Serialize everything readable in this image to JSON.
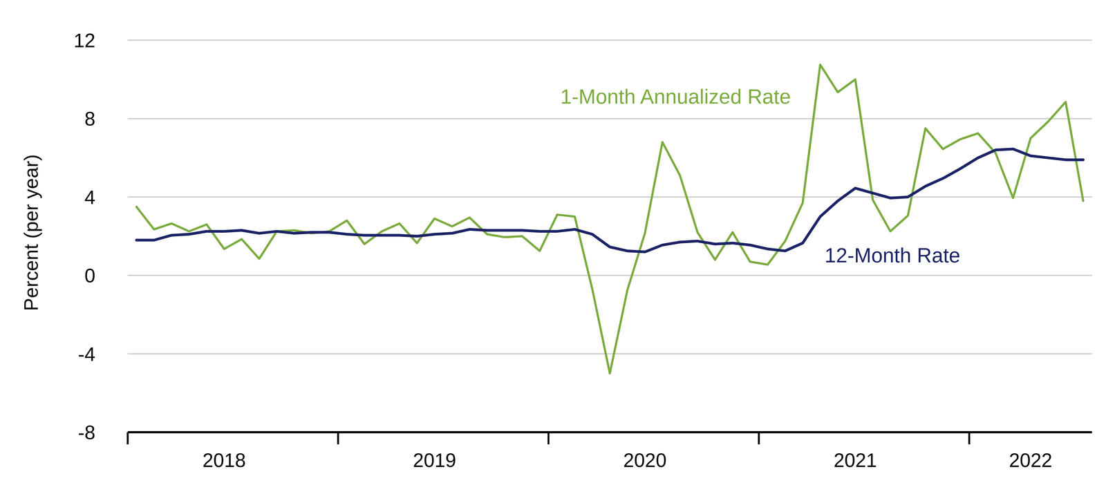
{
  "chart_data": {
    "type": "line",
    "y_label": "Percent (per year)",
    "annotations": [
      "1-Month Annualized Rate",
      "12-Month Rate"
    ],
    "categories": [
      null,
      null,
      null,
      null,
      null,
      "2018",
      null,
      null,
      null,
      null,
      null,
      null,
      null,
      null,
      null,
      null,
      null,
      "2019",
      null,
      null,
      null,
      null,
      null,
      null,
      null,
      null,
      null,
      null,
      null,
      "2020",
      null,
      null,
      null,
      null,
      null,
      null,
      null,
      null,
      null,
      null,
      null,
      "2021",
      null,
      null,
      null,
      null,
      null,
      null,
      null,
      null,
      null,
      "2022",
      null,
      null,
      null
    ],
    "series": [
      {
        "name": "1-Month Annualized Rate",
        "color": "#7aab3e",
        "values": [
          3.5,
          2.35,
          2.65,
          2.25,
          2.6,
          1.35,
          1.85,
          0.85,
          2.25,
          2.3,
          2.15,
          2.25,
          2.8,
          1.6,
          2.25,
          2.65,
          1.65,
          2.9,
          2.5,
          2.95,
          2.1,
          1.95,
          2.0,
          1.25,
          3.1,
          3.0,
          -0.7,
          -5.0,
          -0.75,
          2.15,
          6.8,
          5.1,
          2.2,
          0.8,
          2.2,
          0.7,
          0.55,
          1.75,
          3.7,
          10.75,
          9.35,
          10.0,
          3.85,
          2.25,
          3.05,
          7.5,
          6.45,
          6.95,
          7.25,
          6.25,
          3.95,
          7.0,
          7.85,
          8.85,
          3.8
        ]
      },
      {
        "name": "12-Month Rate",
        "color": "#1b2366",
        "values": [
          1.8,
          1.8,
          2.05,
          2.1,
          2.25,
          2.25,
          2.3,
          2.15,
          2.25,
          2.15,
          2.2,
          2.2,
          2.1,
          2.05,
          2.05,
          2.05,
          2.0,
          2.1,
          2.15,
          2.35,
          2.3,
          2.3,
          2.3,
          2.25,
          2.25,
          2.35,
          2.1,
          1.45,
          1.25,
          1.2,
          1.55,
          1.7,
          1.75,
          1.6,
          1.65,
          1.55,
          1.35,
          1.25,
          1.65,
          3.0,
          3.8,
          4.45,
          4.2,
          3.95,
          4.0,
          4.55,
          4.95,
          5.45,
          6.0,
          6.4,
          6.45,
          6.1,
          6.0,
          5.9,
          5.9
        ]
      }
    ],
    "ylim": [
      -8,
      12
    ],
    "yticks": [
      -8,
      -4,
      0,
      4,
      8,
      12
    ],
    "grid": true
  }
}
